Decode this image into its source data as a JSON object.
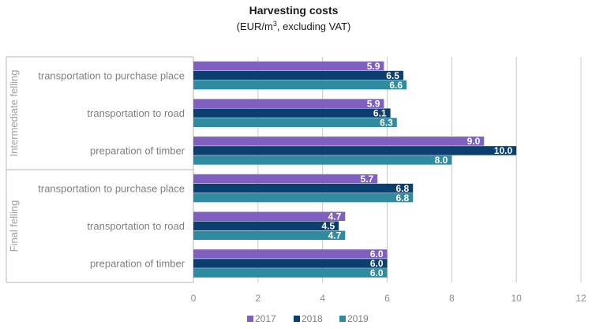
{
  "chart_data": {
    "type": "bar",
    "orientation": "horizontal",
    "title": "Harvesting costs",
    "subtitle_prefix": "(EUR/m",
    "subtitle_sup": "3",
    "subtitle_suffix": ", excluding VAT)",
    "xlim": [
      0,
      12
    ],
    "xticks": [
      0,
      2,
      4,
      6,
      8,
      10,
      12
    ],
    "grid": true,
    "legend_position": "bottom",
    "series": [
      {
        "name": "2017",
        "color": "#7f5fbf"
      },
      {
        "name": "2018",
        "color": "#0a3f70"
      },
      {
        "name": "2019",
        "color": "#2f8ba0"
      }
    ],
    "groups": [
      {
        "label": "Intermediate felling",
        "categories": [
          {
            "label": "transportation to purchase place",
            "values": [
              5.9,
              6.5,
              6.6
            ]
          },
          {
            "label": "transportation to road",
            "values": [
              5.9,
              6.1,
              6.3
            ]
          },
          {
            "label": "preparation of timber",
            "values": [
              9.0,
              10.0,
              8.0
            ]
          }
        ]
      },
      {
        "label": "Final felling",
        "categories": [
          {
            "label": "transportation to purchase place",
            "values": [
              5.7,
              6.8,
              6.8
            ]
          },
          {
            "label": "transportation to road",
            "values": [
              4.7,
              4.5,
              4.7
            ]
          },
          {
            "label": "preparation of timber",
            "values": [
              6.0,
              6.0,
              6.0
            ]
          }
        ]
      }
    ]
  }
}
